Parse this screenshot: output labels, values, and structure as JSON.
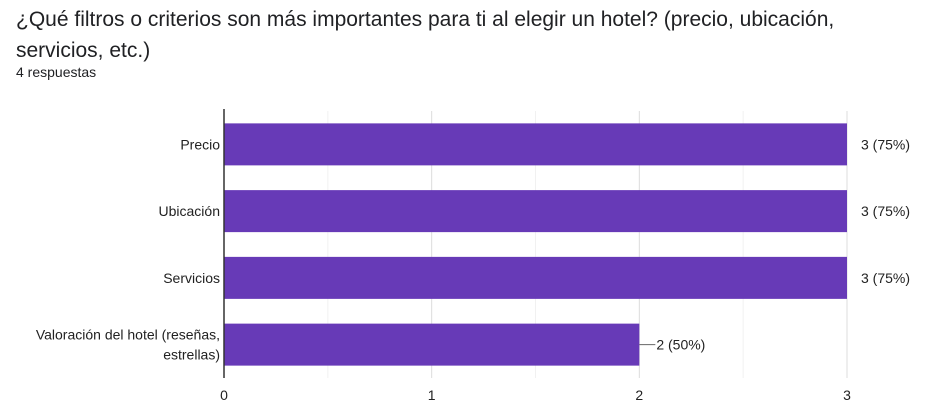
{
  "question": {
    "title": "¿Qué filtros o criterios son más importantes para ti al elegir un hotel? (precio, ubicación, servicios, etc.)",
    "responses": "4 respuestas"
  },
  "chart_data": {
    "type": "bar",
    "orientation": "horizontal",
    "categories": [
      [
        "Precio"
      ],
      [
        "Ubicación"
      ],
      [
        "Servicios"
      ],
      [
        "Valoración del hotel (reseñas,",
        "estrellas)"
      ]
    ],
    "values": [
      3,
      3,
      3,
      2
    ],
    "value_labels": [
      "3 (75%)",
      "3 (75%)",
      "3 (75%)",
      "2 (50%)"
    ],
    "xlim": [
      0,
      3
    ],
    "xticks": [
      0,
      1,
      2,
      3
    ],
    "grid": true,
    "bar_color": "#673ab7"
  }
}
